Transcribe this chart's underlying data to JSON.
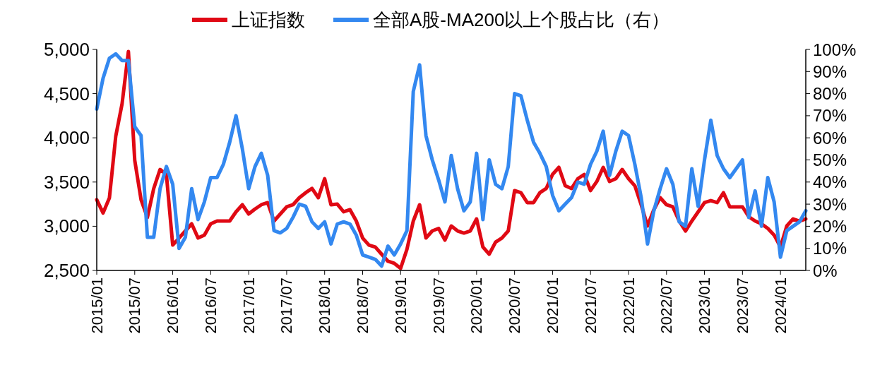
{
  "chart_data": {
    "type": "line",
    "legend": "top",
    "grid": false,
    "line_style": "solid",
    "x": [
      "2015-01",
      "2015-02",
      "2015-03",
      "2015-04",
      "2015-05",
      "2015-06",
      "2015-07",
      "2015-08",
      "2015-09",
      "2015-10",
      "2015-11",
      "2015-12",
      "2016-01",
      "2016-02",
      "2016-03",
      "2016-04",
      "2016-05",
      "2016-06",
      "2016-07",
      "2016-08",
      "2016-09",
      "2016-10",
      "2016-11",
      "2016-12",
      "2017-01",
      "2017-02",
      "2017-03",
      "2017-04",
      "2017-05",
      "2017-06",
      "2017-07",
      "2017-08",
      "2017-09",
      "2017-10",
      "2017-11",
      "2017-12",
      "2018-01",
      "2018-02",
      "2018-03",
      "2018-04",
      "2018-05",
      "2018-06",
      "2018-07",
      "2018-08",
      "2018-09",
      "2018-10",
      "2018-11",
      "2018-12",
      "2019-01",
      "2019-02",
      "2019-03",
      "2019-04",
      "2019-05",
      "2019-06",
      "2019-07",
      "2019-08",
      "2019-09",
      "2019-10",
      "2019-11",
      "2019-12",
      "2020-01",
      "2020-02",
      "2020-03",
      "2020-04",
      "2020-05",
      "2020-06",
      "2020-07",
      "2020-08",
      "2020-09",
      "2020-10",
      "2020-11",
      "2020-12",
      "2021-01",
      "2021-02",
      "2021-03",
      "2021-04",
      "2021-05",
      "2021-06",
      "2021-07",
      "2021-08",
      "2021-09",
      "2021-10",
      "2021-11",
      "2021-12",
      "2022-01",
      "2022-02",
      "2022-03",
      "2022-04",
      "2022-05",
      "2022-06",
      "2022-07",
      "2022-08",
      "2022-09",
      "2022-10",
      "2022-11",
      "2022-12",
      "2023-01",
      "2023-02",
      "2023-03",
      "2023-04",
      "2023-05",
      "2023-06",
      "2023-07",
      "2023-08",
      "2023-09",
      "2023-10",
      "2023-11",
      "2023-12",
      "2024-01",
      "2024-02",
      "2024-03",
      "2024-04",
      "2024-05"
    ],
    "series": [
      {
        "name": "上证指数",
        "color": "#e00914",
        "values": [
          3300,
          3150,
          3320,
          4017,
          4385,
          4976,
          3746,
          3300,
          3100,
          3427,
          3642,
          3586,
          2787,
          2867,
          2947,
          3027,
          2867,
          2900,
          3027,
          3059,
          3059,
          3059,
          3163,
          3243,
          3139,
          3195,
          3243,
          3267,
          3059,
          3139,
          3219,
          3243,
          3323,
          3379,
          3427,
          3323,
          3538,
          3243,
          3250,
          3163,
          3187,
          3059,
          2867,
          2787,
          2764,
          2684,
          2604,
          2580,
          2524,
          2740,
          3059,
          3243,
          2867,
          2947,
          2975,
          2843,
          3003,
          2947,
          2923,
          2947,
          3083,
          2764,
          2684,
          2820,
          2867,
          2947,
          3403,
          3379,
          3267,
          3267,
          3379,
          3427,
          3586,
          3666,
          3458,
          3427,
          3538,
          3586,
          3403,
          3507,
          3666,
          3507,
          3538,
          3642,
          3538,
          3458,
          3243,
          3003,
          3187,
          3323,
          3243,
          3219,
          3059,
          2947,
          3059,
          3163,
          3267,
          3290,
          3267,
          3379,
          3219,
          3219,
          3219,
          3107,
          3059,
          3027,
          2975,
          2900,
          2764,
          3003,
          3083,
          3059,
          3083
        ]
      },
      {
        "name": "全部A股-MA200以上个股占比（右）",
        "color": "#3388f0",
        "axis": "y2",
        "values": [
          73,
          87,
          96,
          98,
          95,
          95,
          65,
          61,
          15,
          15,
          37,
          47,
          39,
          10,
          15,
          37,
          23,
          31,
          42,
          42,
          48,
          58,
          70,
          55,
          37,
          47,
          53,
          43,
          18,
          17,
          19,
          24,
          30,
          29,
          22,
          19,
          22,
          12,
          21,
          22,
          21,
          16,
          7,
          6,
          5,
          2,
          11,
          7,
          12,
          18,
          81,
          93,
          61,
          50,
          41,
          31,
          52,
          37,
          27,
          31,
          53,
          23,
          50,
          39,
          37,
          47,
          80,
          79,
          68,
          58,
          53,
          47,
          34,
          27,
          30,
          33,
          40,
          39,
          48,
          54,
          63,
          43,
          54,
          63,
          61,
          48,
          33,
          12,
          27,
          37,
          46,
          39,
          22,
          20,
          46,
          29,
          50,
          68,
          52,
          46,
          42,
          46,
          50,
          24,
          36,
          20,
          42,
          31,
          6,
          18,
          20,
          22,
          27
        ]
      }
    ],
    "xlim": [
      "2015-01",
      "2024-05"
    ],
    "xticks": [
      {
        "value": "2015-01",
        "label": "2015/01"
      },
      {
        "value": "2015-07",
        "label": "2015/07"
      },
      {
        "value": "2016-01",
        "label": "2016/01"
      },
      {
        "value": "2016-07",
        "label": "2016/07"
      },
      {
        "value": "2017-01",
        "label": "2017/01"
      },
      {
        "value": "2017-07",
        "label": "2017/07"
      },
      {
        "value": "2018-01",
        "label": "2018/01"
      },
      {
        "value": "2018-07",
        "label": "2018/07"
      },
      {
        "value": "2019-01",
        "label": "2019/01"
      },
      {
        "value": "2019-07",
        "label": "2019/07"
      },
      {
        "value": "2020-01",
        "label": "2020/01"
      },
      {
        "value": "2020-07",
        "label": "2020/07"
      },
      {
        "value": "2021-01",
        "label": "2021/01"
      },
      {
        "value": "2021-07",
        "label": "2021/07"
      },
      {
        "value": "2022-01",
        "label": "2022/01"
      },
      {
        "value": "2022-07",
        "label": "2022/07"
      },
      {
        "value": "2023-01",
        "label": "2023/01"
      },
      {
        "value": "2023-07",
        "label": "2023/07"
      },
      {
        "value": "2024-01",
        "label": "2024/01"
      }
    ],
    "ylim": [
      2500,
      5000
    ],
    "yticks": [
      {
        "value": 2500,
        "label": "2,500"
      },
      {
        "value": 3000,
        "label": "3,000"
      },
      {
        "value": 3500,
        "label": "3,500"
      },
      {
        "value": 4000,
        "label": "4,000"
      },
      {
        "value": 4500,
        "label": "4,500"
      },
      {
        "value": 5000,
        "label": "5,000"
      }
    ],
    "y2lim": [
      0,
      100
    ],
    "y2ticks": [
      {
        "value": 0,
        "label": "0%"
      },
      {
        "value": 10,
        "label": "10%"
      },
      {
        "value": 20,
        "label": "20%"
      },
      {
        "value": 30,
        "label": "30%"
      },
      {
        "value": 40,
        "label": "40%"
      },
      {
        "value": 50,
        "label": "50%"
      },
      {
        "value": 60,
        "label": "60%"
      },
      {
        "value": 70,
        "label": "70%"
      },
      {
        "value": 80,
        "label": "80%"
      },
      {
        "value": 90,
        "label": "90%"
      },
      {
        "value": 100,
        "label": "100%"
      }
    ]
  }
}
